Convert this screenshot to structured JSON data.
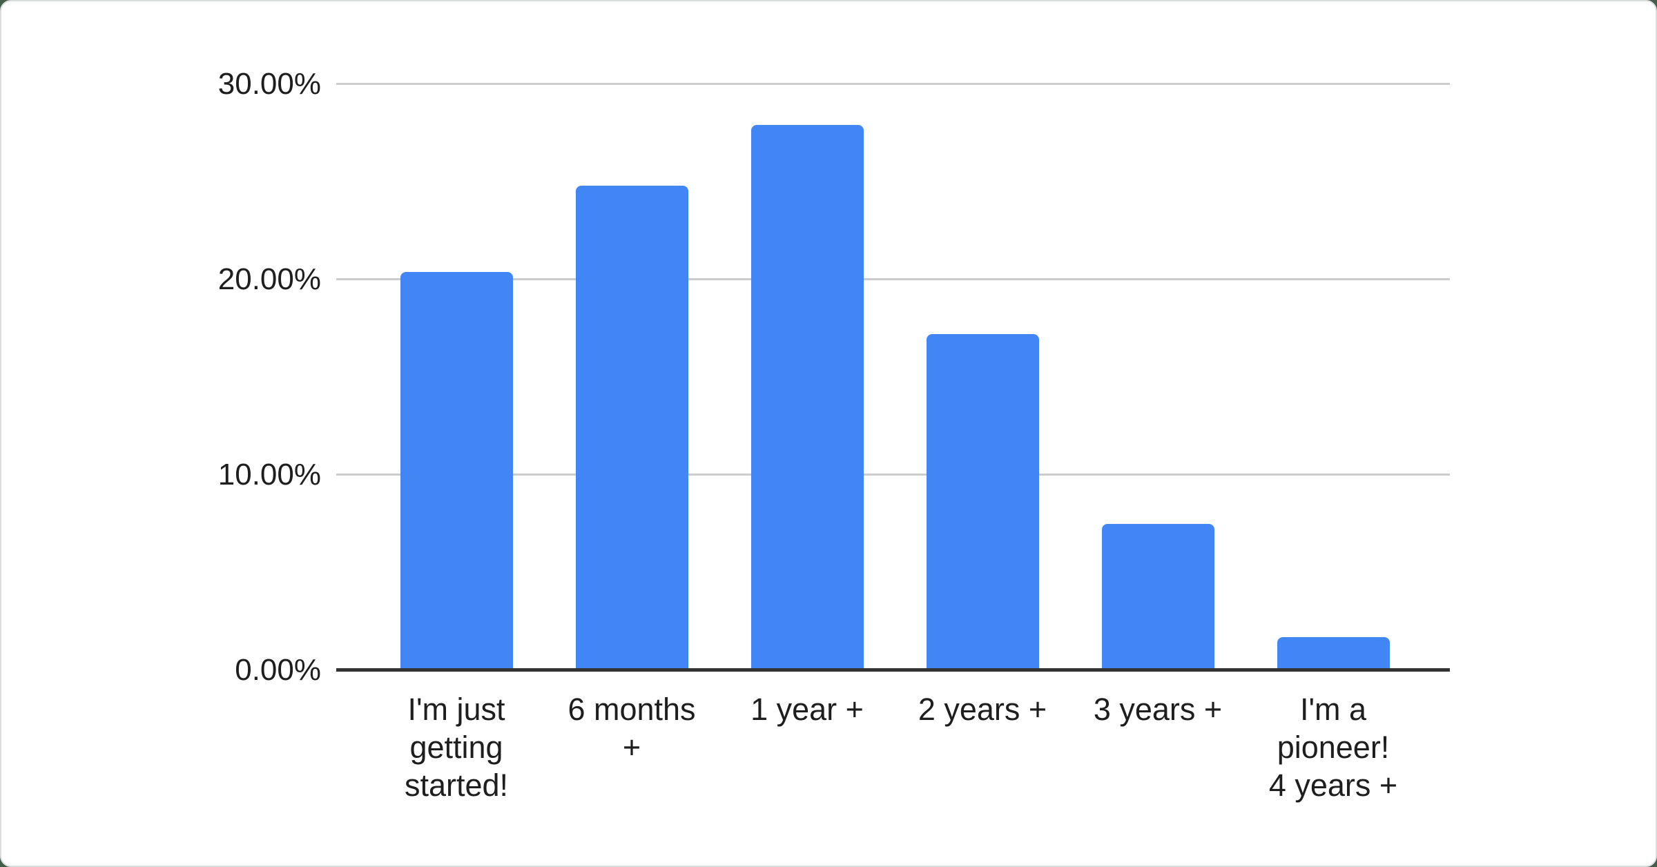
{
  "chart_data": {
    "type": "bar",
    "title": "",
    "xlabel": "",
    "ylabel": "",
    "categories": [
      "I'm just getting started!",
      "6 months +",
      "1 year +",
      "2 years +",
      "3 years +",
      "I'm a pioneer! 4 years +"
    ],
    "x_tick_labels": [
      "I'm just\ngetting\nstarted!",
      "6 months\n+",
      "1 year +",
      "2 years +",
      "3 years +",
      "I'm a\npioneer!\n4 years +"
    ],
    "values": [
      20.4,
      24.8,
      27.9,
      17.2,
      7.5,
      1.7
    ],
    "unit": "%",
    "ylim": [
      0,
      30
    ],
    "y_ticks": [
      {
        "value": 0,
        "label": "0.00%"
      },
      {
        "value": 10,
        "label": "10.00%"
      },
      {
        "value": 20,
        "label": "20.00%"
      },
      {
        "value": 30,
        "label": "30.00%"
      }
    ],
    "grid": true,
    "legend": "none",
    "bar_color": "#4285f4"
  },
  "colors": {
    "bar": "#4285f4",
    "gridline": "#cccccc",
    "baseline": "#333333",
    "axis_text": "#1e1e1e",
    "card_background": "#ffffff",
    "page_background": "#46604a"
  }
}
